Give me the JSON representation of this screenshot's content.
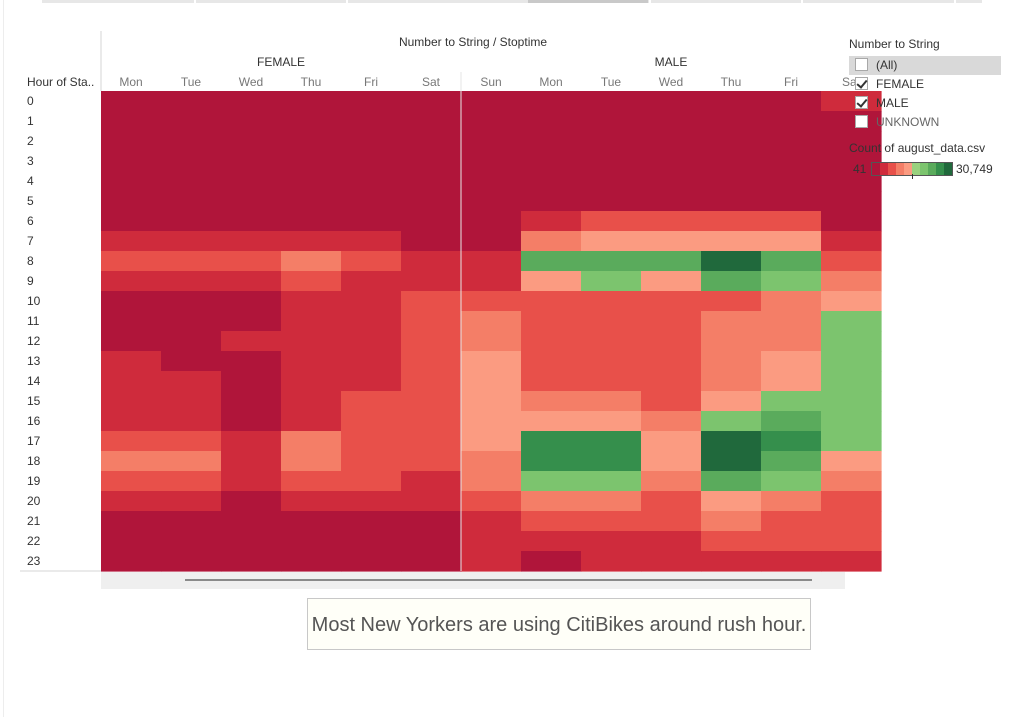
{
  "header": {
    "title": "Number to String / Stoptime",
    "row_axis_label": "Hour of Sta.."
  },
  "legend": {
    "title": "Number to String",
    "items": [
      {
        "label": "(All)",
        "checked": false
      },
      {
        "label": "FEMALE",
        "checked": true
      },
      {
        "label": "MALE",
        "checked": true
      },
      {
        "label": "UNKNOWN",
        "checked": false
      }
    ],
    "color_title": "Count of august_data.csv",
    "color_min": "41",
    "color_max": "30,749",
    "ramp_colors": [
      "#b0153a",
      "#cf2b3c",
      "#e8504a",
      "#f47e67",
      "#fb9b81",
      "#99d17e",
      "#7cc46e",
      "#5aab5c",
      "#358f4c",
      "#20693c"
    ]
  },
  "caption": "Most New Yorkers are using CitiBikes around rush hour.",
  "chart_data": {
    "type": "heatmap",
    "title": "Number to String / Stoptime",
    "ylabel": "Hour of Sta..",
    "groups": [
      {
        "name": "FEMALE",
        "columns": [
          "Mon",
          "Tue",
          "Wed",
          "Thu",
          "Fri",
          "Sat"
        ]
      },
      {
        "name": "MALE",
        "columns": [
          "Sun",
          "Mon",
          "Tue",
          "Wed",
          "Thu",
          "Fri",
          "Sat"
        ]
      }
    ],
    "rows": [
      "0",
      "1",
      "2",
      "3",
      "4",
      "5",
      "6",
      "7",
      "8",
      "9",
      "10",
      "11",
      "12",
      "13",
      "14",
      "15",
      "16",
      "17",
      "18",
      "19",
      "20",
      "21",
      "22",
      "23"
    ],
    "value_range": [
      41,
      30749
    ],
    "values": [
      [
        0,
        0,
        0,
        0,
        0,
        0,
        0,
        0,
        0,
        0,
        0,
        0,
        1
      ],
      [
        0,
        0,
        0,
        0,
        0,
        0,
        0,
        0,
        0,
        0,
        0,
        0,
        0
      ],
      [
        0,
        0,
        0,
        0,
        0,
        0,
        0,
        0,
        0,
        0,
        0,
        0,
        0
      ],
      [
        0,
        0,
        0,
        0,
        0,
        0,
        0,
        0,
        0,
        0,
        0,
        0,
        0
      ],
      [
        0,
        0,
        0,
        0,
        0,
        0,
        0,
        0,
        0,
        0,
        0,
        0,
        0
      ],
      [
        0,
        0,
        0,
        0,
        0,
        0,
        0,
        0,
        0,
        0,
        0,
        0,
        0
      ],
      [
        0,
        0,
        0,
        0,
        0,
        0,
        0,
        1,
        2,
        2,
        2,
        2,
        0
      ],
      [
        1,
        1,
        1,
        1,
        1,
        0,
        0,
        3,
        4,
        4,
        4,
        4,
        1
      ],
      [
        2,
        2,
        2,
        3,
        2,
        1,
        1,
        7,
        7,
        7,
        9,
        7,
        2
      ],
      [
        1,
        1,
        1,
        2,
        1,
        1,
        1,
        4,
        6,
        4,
        7,
        6,
        3
      ],
      [
        0,
        0,
        0,
        1,
        1,
        2,
        2,
        2,
        2,
        2,
        2,
        3,
        4
      ],
      [
        0,
        0,
        0,
        1,
        1,
        2,
        3,
        2,
        2,
        2,
        3,
        3,
        6
      ],
      [
        0,
        0,
        1,
        1,
        1,
        2,
        3,
        2,
        2,
        2,
        3,
        3,
        6
      ],
      [
        1,
        0,
        0,
        1,
        1,
        2,
        4,
        2,
        2,
        2,
        3,
        4,
        6
      ],
      [
        1,
        1,
        0,
        1,
        1,
        2,
        4,
        2,
        2,
        2,
        3,
        4,
        6
      ],
      [
        1,
        1,
        0,
        1,
        2,
        2,
        4,
        3,
        3,
        2,
        4,
        6,
        6
      ],
      [
        1,
        1,
        0,
        1,
        2,
        2,
        4,
        4,
        4,
        3,
        6,
        7,
        6
      ],
      [
        2,
        2,
        1,
        3,
        2,
        2,
        4,
        8,
        8,
        4,
        9,
        8,
        6
      ],
      [
        3,
        3,
        1,
        3,
        2,
        2,
        3,
        8,
        8,
        4,
        9,
        7,
        4
      ],
      [
        2,
        2,
        1,
        2,
        2,
        1,
        3,
        6,
        6,
        3,
        7,
        6,
        3
      ],
      [
        1,
        1,
        0,
        1,
        1,
        1,
        2,
        3,
        3,
        2,
        4,
        3,
        2
      ],
      [
        0,
        0,
        0,
        0,
        0,
        0,
        1,
        2,
        2,
        2,
        3,
        2,
        2
      ],
      [
        0,
        0,
        0,
        0,
        0,
        0,
        1,
        1,
        1,
        1,
        2,
        2,
        2
      ],
      [
        0,
        0,
        0,
        0,
        0,
        0,
        1,
        0,
        1,
        1,
        1,
        1,
        1
      ]
    ]
  }
}
